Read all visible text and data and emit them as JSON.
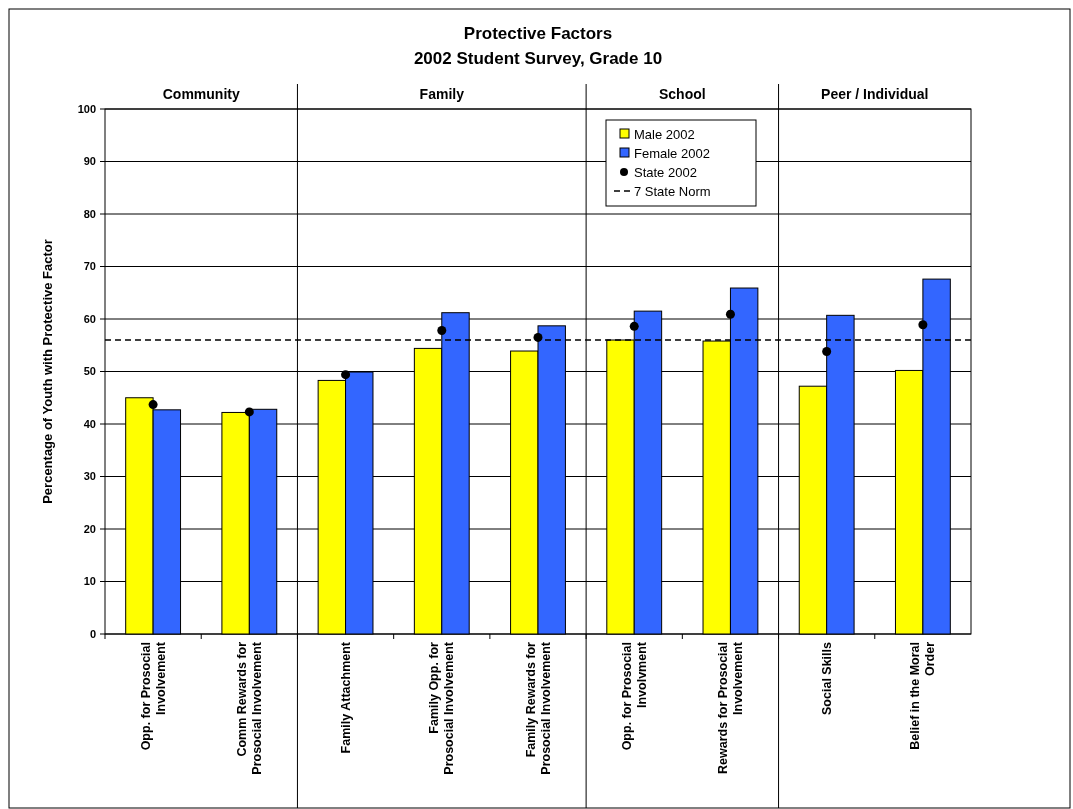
{
  "chart_data": {
    "type": "bar",
    "title": "Protective Factors",
    "subtitle": "2002 Student Survey, Grade 10",
    "ylabel": "Percentage of Youth with Protective Factor",
    "categories": [
      "Opp. for Prosocial Involvement",
      "Comm Rewards for Prosocial Involvement",
      "Family Attachment",
      "Family Opp. for Prosocial Involvement",
      "Family Rewards for Prosocial Involvement",
      "Opp. for Prosocial Involvment",
      "Rewards for Prosocial Involvement",
      "Social Skills",
      "Belief in the Moral Order"
    ],
    "series": [
      {
        "name": "Male 2002",
        "color": "#ffff00",
        "values": [
          45.0,
          42.2,
          48.3,
          54.4,
          53.9,
          56.0,
          55.8,
          47.2,
          50.2
        ]
      },
      {
        "name": "Female 2002",
        "color": "#3366ff",
        "values": [
          42.7,
          42.8,
          49.9,
          61.2,
          58.7,
          61.5,
          65.9,
          60.7,
          67.6
        ]
      },
      {
        "name": "State 2002",
        "type": "scatter",
        "color": "#000000",
        "x": [
          "Opp. for Prosocial Involvement",
          "Comm Rewards for Prosocial Involvement",
          "Family Attachment",
          "Family Opp. for Prosocial Involvement",
          "Family Rewards for Prosocial Involvement",
          "Opp. for Prosocial Involvment",
          "Rewards for Prosocial Involvement",
          "Social Skills",
          "Belief in the Moral Order"
        ],
        "values": [
          43.7,
          42.3,
          49.4,
          57.8,
          56.5,
          58.6,
          60.9,
          53.8,
          58.9
        ]
      }
    ],
    "ylim": [
      0,
      100
    ],
    "yticks": [
      0,
      10,
      20,
      30,
      40,
      50,
      60,
      70,
      80,
      90,
      100
    ],
    "grid": "y",
    "legend": "top",
    "marker": "circle",
    "ref_lines": [
      {
        "axis": "y",
        "value": 56,
        "label": "7 State Norm",
        "color": "#000000",
        "line_style": "dashed"
      }
    ],
    "annotations": [
      "Community",
      "Family",
      "School",
      "Peer / Individual"
    ]
  }
}
